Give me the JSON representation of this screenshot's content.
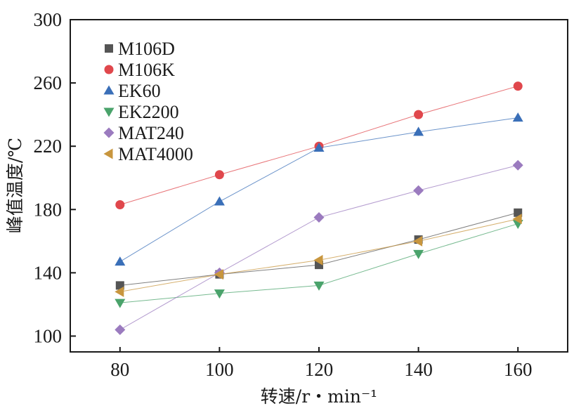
{
  "chart_data": {
    "type": "line",
    "title": "",
    "xlabel": "转速/r・min⁻¹",
    "ylabel": "峰值温度/℃",
    "x": [
      80,
      100,
      120,
      140,
      160
    ],
    "xlim": [
      70,
      170
    ],
    "ylim": [
      90,
      300
    ],
    "xticks": [
      80,
      100,
      120,
      140,
      160
    ],
    "yticks": [
      100,
      140,
      180,
      220,
      260,
      300
    ],
    "grid": false,
    "legend_position": "top-left",
    "series": [
      {
        "name": "M106D",
        "marker": "square",
        "color": "#555555",
        "values": [
          132,
          139,
          145,
          161,
          178
        ]
      },
      {
        "name": "M106K",
        "marker": "circle",
        "color": "#e0474c",
        "values": [
          183,
          202,
          220,
          240,
          258
        ]
      },
      {
        "name": "EK60",
        "marker": "triangle-up",
        "color": "#3a6fb8",
        "values": [
          147,
          185,
          219,
          229,
          238
        ]
      },
      {
        "name": "EK2200",
        "marker": "triangle-down",
        "color": "#4aa36b",
        "values": [
          121,
          127,
          132,
          152,
          171
        ]
      },
      {
        "name": "MAT240",
        "marker": "diamond",
        "color": "#9b7bbf",
        "values": [
          104,
          140,
          175,
          192,
          208
        ]
      },
      {
        "name": "MAT4000",
        "marker": "triangle-left",
        "color": "#c8963e",
        "values": [
          128,
          139,
          148,
          160,
          174
        ]
      }
    ]
  }
}
